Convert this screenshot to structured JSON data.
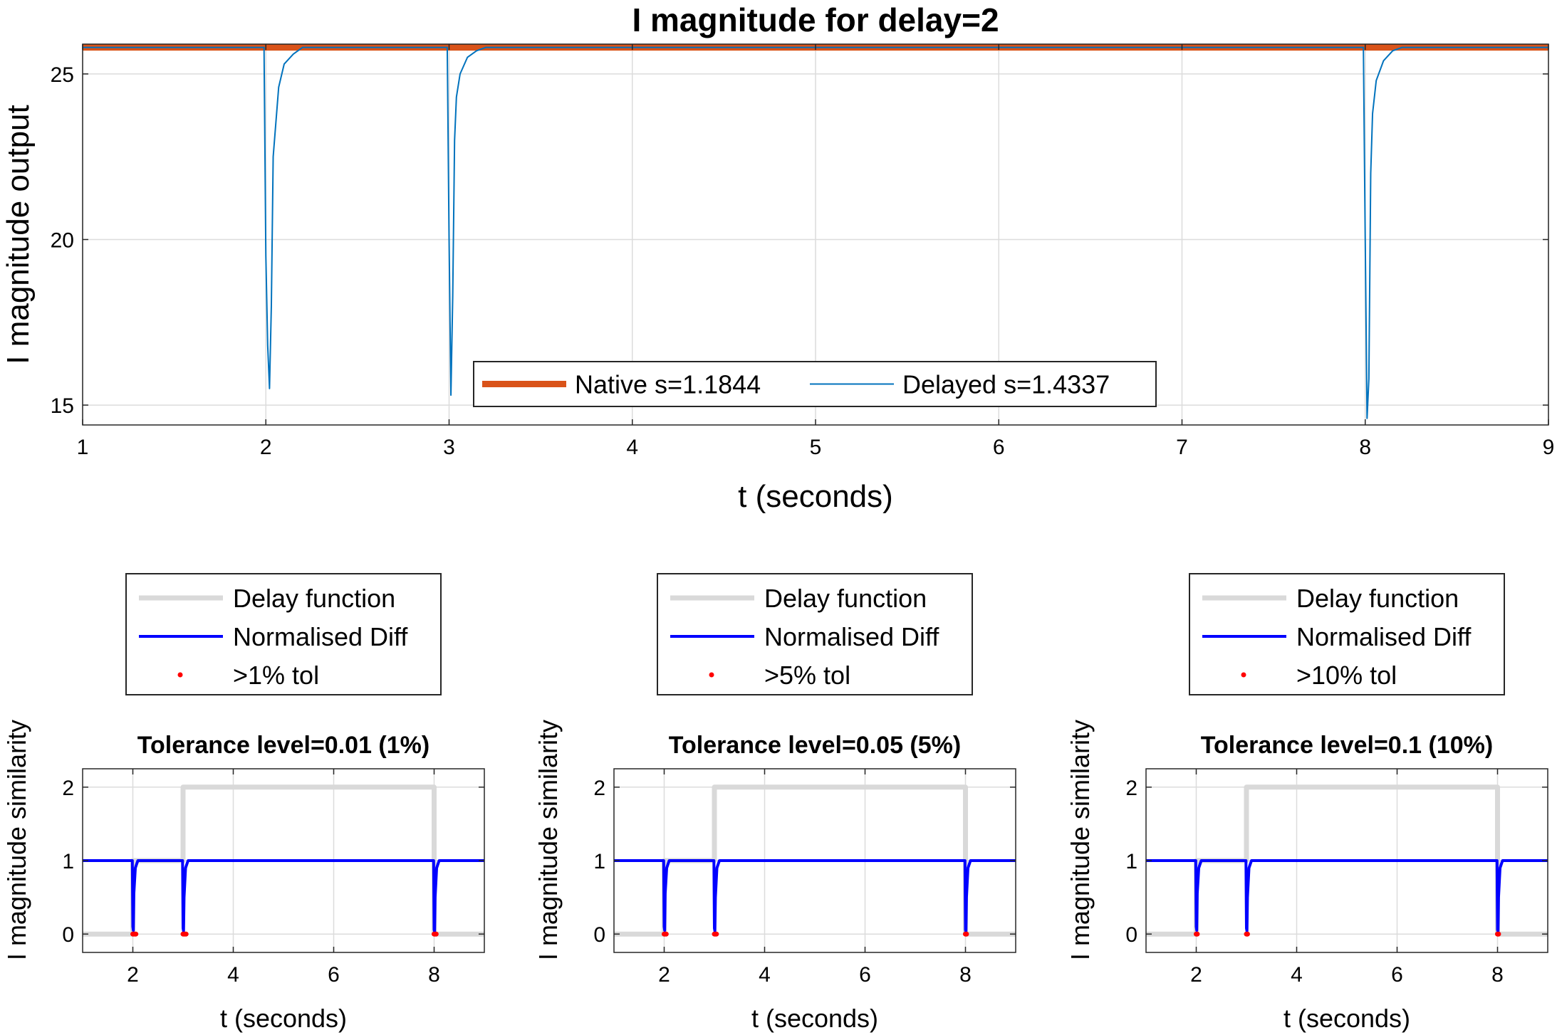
{
  "chart_data": [
    {
      "type": "line",
      "title": "I magnitude for delay=2",
      "xlabel": "t (seconds)",
      "ylabel": "I magnitude output",
      "xlim": [
        1,
        9
      ],
      "ylim": [
        14.4,
        25.9
      ],
      "xticks": [
        1,
        2,
        3,
        4,
        5,
        6,
        7,
        8,
        9
      ],
      "yticks": [
        15,
        20,
        25
      ],
      "grid": true,
      "legend": {
        "placement": "bottom-center",
        "orientation": "horizontal"
      },
      "series": [
        {
          "name": "Native s=1.1844",
          "color": "#D95319",
          "x": [
            1,
            9
          ],
          "y": [
            25.8,
            25.8
          ]
        },
        {
          "name": "Delayed s=1.4337",
          "color": "#0072BD",
          "x": [
            1,
            1.99,
            2.0,
            2.01,
            2.02,
            2.03,
            2.04,
            2.05,
            2.07,
            2.1,
            2.15,
            2.2,
            2.99,
            3.0,
            3.01,
            3.02,
            3.03,
            3.04,
            3.06,
            3.1,
            3.15,
            3.2,
            7.99,
            8.0,
            8.01,
            8.02,
            8.03,
            8.04,
            8.06,
            8.1,
            8.15,
            8.2,
            9
          ],
          "y": [
            25.8,
            25.8,
            19.5,
            16.8,
            15.5,
            18.0,
            22.5,
            23.2,
            24.6,
            25.3,
            25.6,
            25.8,
            25.8,
            20.0,
            15.3,
            18.3,
            23.0,
            24.3,
            25.0,
            25.5,
            25.7,
            25.8,
            25.8,
            20.0,
            14.6,
            15.8,
            22.0,
            23.8,
            24.8,
            25.4,
            25.7,
            25.8,
            25.8
          ]
        }
      ]
    },
    {
      "type": "line",
      "title": "Tolerance level=0.01 (1%)",
      "xlabel": "t (seconds)",
      "ylabel": "I magnitude similarity",
      "xlim": [
        1,
        9
      ],
      "ylim": [
        -0.25,
        2.25
      ],
      "xticks": [
        2,
        4,
        6,
        8
      ],
      "yticks": [
        0,
        1,
        2
      ],
      "grid": true,
      "legend": {
        "placement": "above",
        "orientation": "vertical"
      },
      "series": [
        {
          "name": "Delay function",
          "color": "#D9D9D9",
          "x": [
            1,
            2,
            2,
            3,
            3,
            8,
            8,
            9
          ],
          "y": [
            0,
            0,
            1,
            1,
            2,
            2,
            0,
            0
          ]
        },
        {
          "name": "Normalised Diff",
          "color": "#0000FF",
          "x": [
            1,
            1.99,
            2.0,
            2.01,
            2.02,
            2.05,
            2.1,
            2.99,
            3.0,
            3.01,
            3.02,
            3.05,
            3.1,
            7.99,
            8.0,
            8.01,
            8.02,
            8.05,
            8.1,
            9
          ],
          "y": [
            1,
            1,
            0.1,
            0.05,
            0.55,
            0.9,
            1,
            1,
            0.08,
            0.04,
            0.5,
            0.9,
            1,
            1,
            0.06,
            0.03,
            0.5,
            0.9,
            1,
            1
          ]
        },
        {
          "name": ">1% tol",
          "color": "#FF0000",
          "x": [
            2.0,
            2.02,
            2.04,
            2.06,
            3.0,
            3.02,
            3.04,
            3.06,
            8.0,
            8.02,
            8.04
          ],
          "y": [
            0,
            0,
            0,
            0,
            0,
            0,
            0,
            0,
            0,
            0,
            0
          ]
        }
      ]
    },
    {
      "type": "line",
      "title": "Tolerance level=0.05 (5%)",
      "xlabel": "t (seconds)",
      "ylabel": "I magnitude similarity",
      "xlim": [
        1,
        9
      ],
      "ylim": [
        -0.25,
        2.25
      ],
      "xticks": [
        2,
        4,
        6,
        8
      ],
      "yticks": [
        0,
        1,
        2
      ],
      "grid": true,
      "legend": {
        "placement": "above",
        "orientation": "vertical"
      },
      "series": [
        {
          "name": "Delay function",
          "color": "#D9D9D9",
          "x": [
            1,
            2,
            2,
            3,
            3,
            8,
            8,
            9
          ],
          "y": [
            0,
            0,
            1,
            1,
            2,
            2,
            0,
            0
          ]
        },
        {
          "name": "Normalised Diff",
          "color": "#0000FF",
          "x": [
            1,
            1.99,
            2.0,
            2.01,
            2.02,
            2.05,
            2.1,
            2.99,
            3.0,
            3.01,
            3.02,
            3.05,
            3.1,
            7.99,
            8.0,
            8.01,
            8.02,
            8.05,
            8.1,
            9
          ],
          "y": [
            1,
            1,
            0.1,
            0.05,
            0.55,
            0.9,
            1,
            1,
            0.08,
            0.04,
            0.5,
            0.9,
            1,
            1,
            0.06,
            0.03,
            0.5,
            0.9,
            1,
            1
          ]
        },
        {
          "name": ">5% tol",
          "color": "#FF0000",
          "x": [
            2.0,
            2.02,
            2.04,
            3.0,
            3.02,
            3.04,
            8.0,
            8.02
          ],
          "y": [
            0,
            0,
            0,
            0,
            0,
            0,
            0,
            0
          ]
        }
      ]
    },
    {
      "type": "line",
      "title": "Tolerance level=0.1 (10%)",
      "xlabel": "t (seconds)",
      "ylabel": "I magnitude similarity",
      "xlim": [
        1,
        9
      ],
      "ylim": [
        -0.25,
        2.25
      ],
      "xticks": [
        2,
        4,
        6,
        8
      ],
      "yticks": [
        0,
        1,
        2
      ],
      "grid": true,
      "legend": {
        "placement": "above",
        "orientation": "vertical"
      },
      "series": [
        {
          "name": "Delay function",
          "color": "#D9D9D9",
          "x": [
            1,
            2,
            2,
            3,
            3,
            8,
            8,
            9
          ],
          "y": [
            0,
            0,
            1,
            1,
            2,
            2,
            0,
            0
          ]
        },
        {
          "name": "Normalised Diff",
          "color": "#0000FF",
          "x": [
            1,
            1.99,
            2.0,
            2.01,
            2.02,
            2.05,
            2.1,
            2.99,
            3.0,
            3.01,
            3.02,
            3.05,
            3.1,
            7.99,
            8.0,
            8.01,
            8.02,
            8.05,
            8.1,
            9
          ],
          "y": [
            1,
            1,
            0.1,
            0.05,
            0.55,
            0.9,
            1,
            1,
            0.08,
            0.04,
            0.5,
            0.9,
            1,
            1,
            0.06,
            0.03,
            0.5,
            0.9,
            1,
            1
          ]
        },
        {
          "name": ">10% tol",
          "color": "#FF0000",
          "x": [
            2.0,
            2.02,
            3.0,
            3.02,
            8.0,
            8.02
          ],
          "y": [
            0,
            0,
            0,
            0,
            0,
            0
          ]
        }
      ]
    }
  ]
}
